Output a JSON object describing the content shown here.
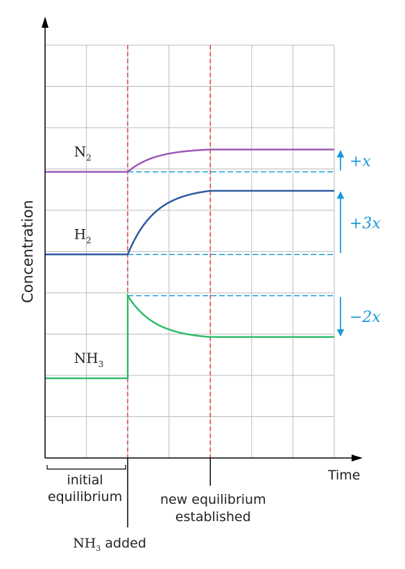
{
  "chart_data": {
    "type": "line",
    "ylabel": "Concentration",
    "xlabel": "Time",
    "grid": true,
    "x_markers": [
      {
        "x": 2,
        "label_main": "NH",
        "label_sub": "3",
        "label_tail": " added"
      },
      {
        "x": 4,
        "label": "new equilibrium established",
        "lines": [
          "new equilibrium",
          "established"
        ]
      }
    ],
    "initial_label": [
      "initial",
      "equilibrium"
    ],
    "series": [
      {
        "name_main": "N",
        "name_sub": "2",
        "color": "#9b59b6",
        "start": 6.93,
        "end": 7.47,
        "curve": "rise"
      },
      {
        "name_main": "H",
        "name_sub": "2",
        "color": "#2c5aa0",
        "start": 4.93,
        "end": 6.47,
        "curve": "rise"
      },
      {
        "name_main": "NH",
        "name_sub": "3",
        "color": "#2ebd6b",
        "start": 1.93,
        "end": 2.93,
        "spike": 3.93,
        "curve": "fall"
      }
    ],
    "changes": [
      {
        "text": "+x",
        "color": "#1a9ad6"
      },
      {
        "text": "+3x",
        "color": "#1a9ad6"
      },
      {
        "text": "−2x",
        "color": "#1a9ad6"
      }
    ],
    "dashed_line_color": "#1a9ad6",
    "marker_color": "#e03a3a",
    "grid_color": "#bbbbbb"
  }
}
